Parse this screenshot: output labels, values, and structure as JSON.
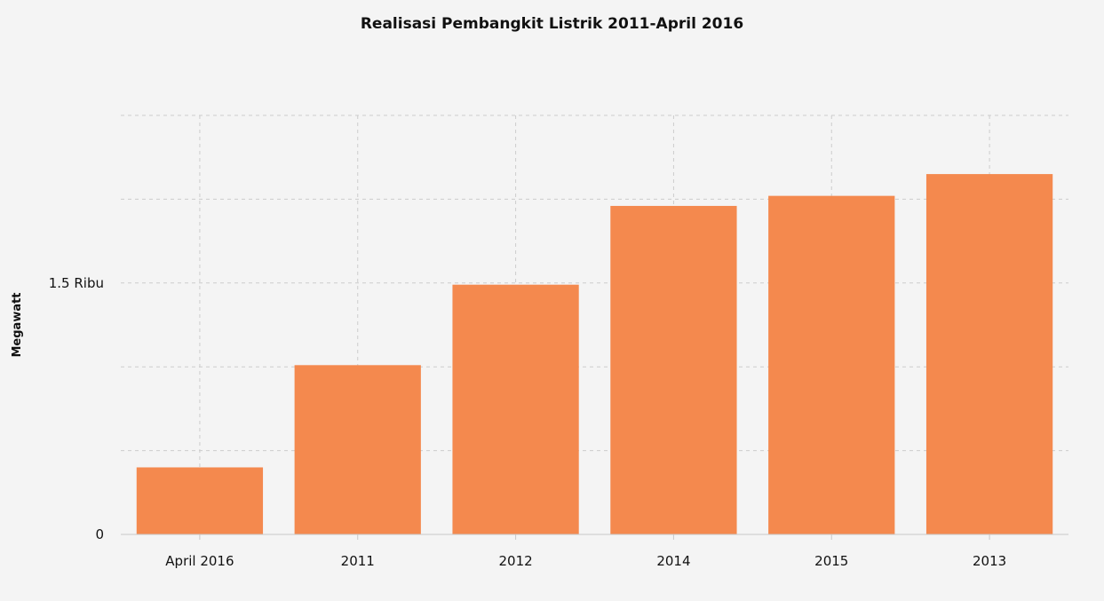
{
  "chart_data": {
    "type": "bar",
    "title": "Realisasi Pembangkit Listrik 2011-April 2016",
    "xlabel": "",
    "ylabel": "Megawatt",
    "categories": [
      "April 2016",
      "2011",
      "2012",
      "2014",
      "2015",
      "2013"
    ],
    "series": [
      {
        "values": [
          400,
          1010,
          1490,
          1960,
          2020,
          2150
        ]
      }
    ],
    "ylim": [
      0,
      2500
    ],
    "y_tick_values": [
      0,
      1500
    ],
    "y_tick_labels": [
      "0",
      "1.5 Ribu"
    ],
    "grid": true,
    "bar_color": "#f4894e",
    "grid_color": "#cccccc",
    "background_color": "#f4f4f4"
  }
}
